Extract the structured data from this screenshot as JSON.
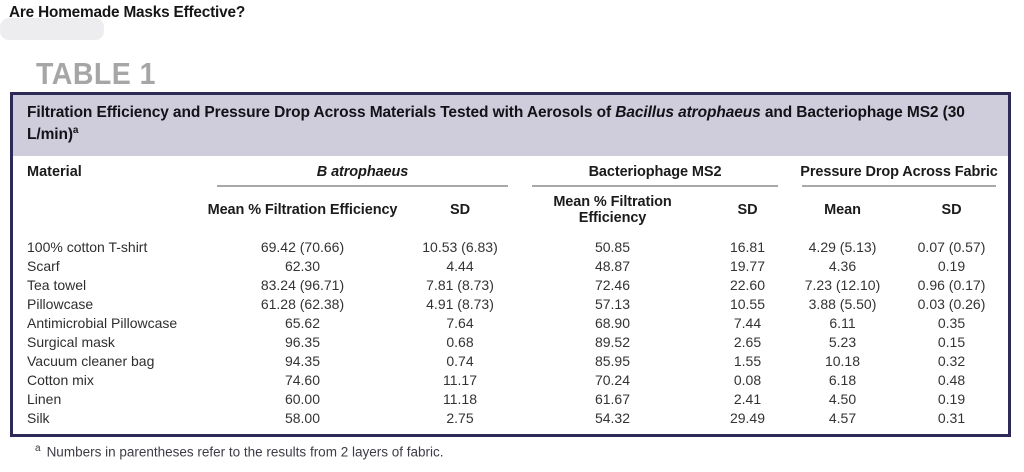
{
  "page": {
    "running_head": "Are Homemade Masks Effective?",
    "table_label": "TABLE 1",
    "footnote_marker": "a",
    "footnote_text": "Numbers in parentheses refer to the results from 2 layers of fabric."
  },
  "table": {
    "title_prefix": "Filtration Efficiency and Pressure Drop Across Materials Tested with Aerosols of ",
    "title_italic": "Bacillus atrophaeus",
    "title_mid": " and Bacteriophage MS2 (30 L/min)",
    "title_superscript": "a",
    "col_material": "Material",
    "groups": [
      {
        "label": "B atrophaeus",
        "italic": true,
        "subcols": [
          "Mean % Filtration Efficiency",
          "SD"
        ]
      },
      {
        "label": "Bacteriophage MS2",
        "italic": false,
        "subcols": [
          "Mean % Filtration Efficiency",
          "SD"
        ]
      },
      {
        "label": "Pressure Drop Across Fabric",
        "italic": false,
        "subcols": [
          "Mean",
          "SD"
        ]
      }
    ],
    "rows": [
      {
        "material": "100% cotton T-shirt",
        "values": [
          "69.42 (70.66)",
          "10.53 (6.83)",
          "50.85",
          "16.81",
          "4.29 (5.13)",
          "0.07 (0.57)"
        ]
      },
      {
        "material": "Scarf",
        "values": [
          "62.30",
          "4.44",
          "48.87",
          "19.77",
          "4.36",
          "0.19"
        ]
      },
      {
        "material": "Tea towel",
        "values": [
          "83.24 (96.71)",
          "7.81 (8.73)",
          "72.46",
          "22.60",
          "7.23 (12.10)",
          "0.96 (0.17)"
        ]
      },
      {
        "material": "Pillowcase",
        "values": [
          "61.28 (62.38)",
          "4.91 (8.73)",
          "57.13",
          "10.55",
          "3.88 (5.50)",
          "0.03 (0.26)"
        ]
      },
      {
        "material": "Antimicrobial Pillowcase",
        "values": [
          "65.62",
          "7.64",
          "68.90",
          "7.44",
          "6.11",
          "0.35"
        ]
      },
      {
        "material": "Surgical mask",
        "values": [
          "96.35",
          "0.68",
          "89.52",
          "2.65",
          "5.23",
          "0.15"
        ]
      },
      {
        "material": "Vacuum cleaner bag",
        "values": [
          "94.35",
          "0.74",
          "85.95",
          "1.55",
          "10.18",
          "0.32"
        ]
      },
      {
        "material": "Cotton mix",
        "values": [
          "74.60",
          "11.17",
          "70.24",
          "0.08",
          "6.18",
          "0.48"
        ]
      },
      {
        "material": "Linen",
        "values": [
          "60.00",
          "11.18",
          "61.67",
          "2.41",
          "4.50",
          "0.19"
        ]
      },
      {
        "material": "Silk",
        "values": [
          "58.00",
          "2.75",
          "54.32",
          "29.49",
          "4.57",
          "0.31"
        ]
      }
    ]
  },
  "colors": {
    "title_band_bg": "#cfccdc",
    "table_border": "#2e2a58",
    "table_label_gray": "#a6a6a6",
    "rule_gray": "#a9a9a9"
  }
}
